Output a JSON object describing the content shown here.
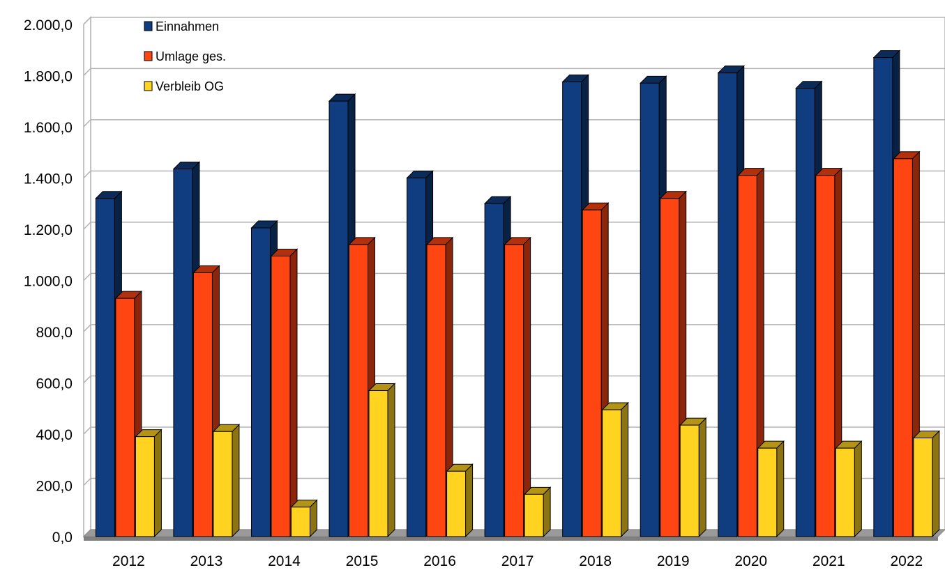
{
  "chart_data": {
    "type": "bar",
    "style": "3d-clustered-column",
    "categories": [
      "2012",
      "2013",
      "2014",
      "2015",
      "2016",
      "2017",
      "2018",
      "2019",
      "2020",
      "2021",
      "2022"
    ],
    "series": [
      {
        "name": "Einnahmen",
        "color": "#0f3d7f",
        "values": [
          1320,
          1435,
          1205,
          1700,
          1400,
          1300,
          1775,
          1770,
          1810,
          1750,
          1870
        ]
      },
      {
        "name": "Umlage ges.",
        "color": "#ff4512",
        "values": [
          930,
          1030,
          1095,
          1140,
          1140,
          1140,
          1275,
          1320,
          1410,
          1410,
          1475
        ]
      },
      {
        "name": "Verbleib OG",
        "color": "#ffd320",
        "values": [
          390,
          410,
          115,
          570,
          255,
          165,
          495,
          435,
          345,
          345,
          385
        ]
      }
    ],
    "yticks": [
      "0,0",
      "200,0",
      "400,0",
      "600,0",
      "800,0",
      "1.000,0",
      "1.200,0",
      "1.400,0",
      "1.600,0",
      "1.800,0",
      "2.000,0"
    ],
    "ylim": [
      0,
      2000
    ],
    "ystep": 200,
    "grid": true,
    "legend_position": "top-left",
    "title": "",
    "xlabel": "",
    "ylabel": ""
  }
}
